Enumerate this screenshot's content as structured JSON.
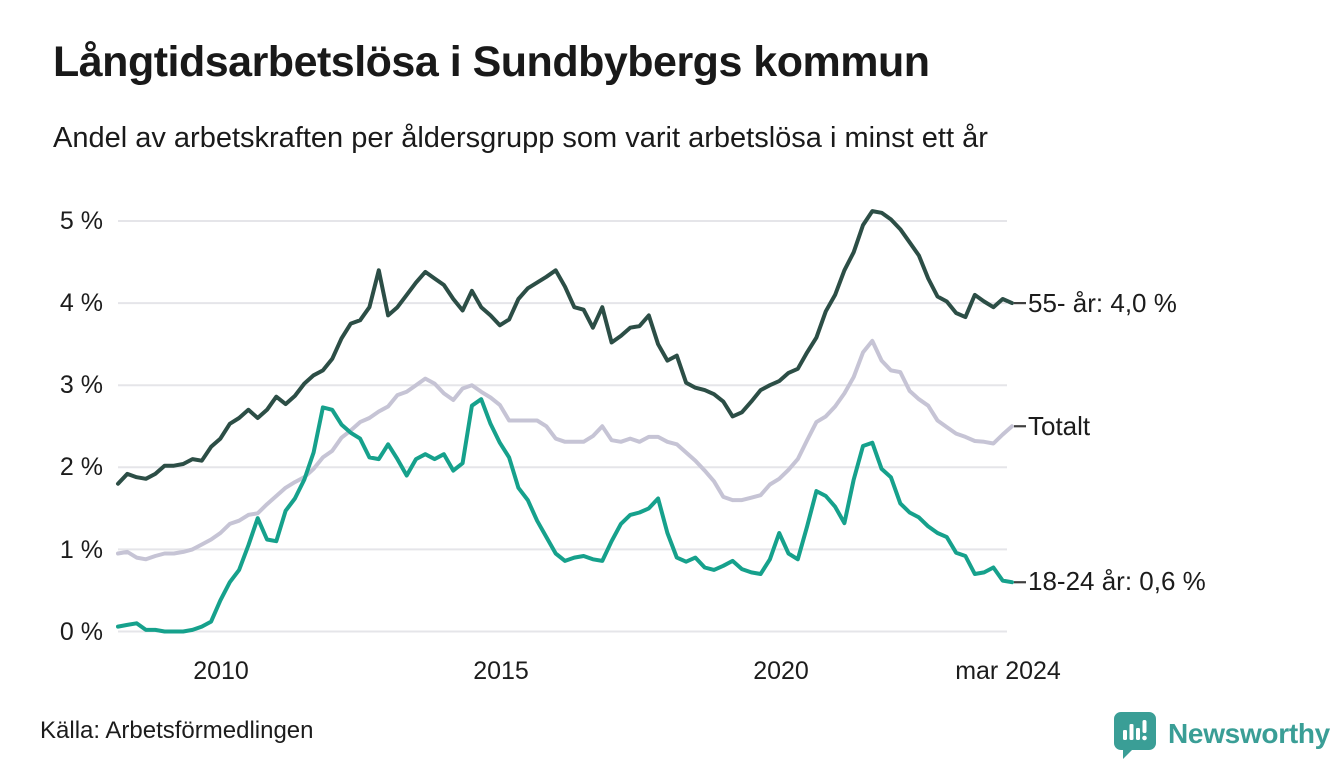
{
  "header": {
    "title": "Långtidsarbetslösa i Sundbybergs kommun",
    "subtitle": "Andel av arbetskraften per åldersgrupp som varit arbetslösa i minst ett år"
  },
  "footer": {
    "source": "Källa: Arbetsförmedlingen",
    "brand": "Newsworthy"
  },
  "colors": {
    "grid": "#e5e5e9",
    "label_dash": "#3f3f3f",
    "text": "#1a1a1a",
    "brand_teal": "#3a9e96"
  },
  "chart_data": {
    "type": "line",
    "title": "Långtidsarbetslösa i Sundbybergs kommun",
    "subtitle": "Andel av arbetskraften per åldersgrupp som varit arbetslösa i minst ett år",
    "xlabel": "",
    "ylabel": "",
    "grid": true,
    "legend_position": "right-inline",
    "ylim": [
      0,
      5.4
    ],
    "y_unit": "%",
    "y_tick_labels": [
      "5 %",
      "4 %",
      "3 %",
      "2 %",
      "1 %",
      "0 %"
    ],
    "y_tick_values": [
      5,
      4,
      3,
      2,
      1,
      0
    ],
    "x_unit": "month",
    "x_start": "2008-03",
    "x_step_months": 2,
    "x_end": "2024-03",
    "x_tick_labels": [
      "2010",
      "2015",
      "2020",
      "mar 2024"
    ],
    "x_tick_years": [
      2010,
      2015,
      2020,
      2024.17
    ],
    "series": [
      {
        "name": "55- år",
        "end_label": "55- år: 4,0 %",
        "last_value_label": "4,0 %",
        "color": "#2c4e46",
        "values": [
          1.8,
          1.92,
          1.88,
          1.86,
          1.92,
          2.02,
          2.02,
          2.04,
          2.1,
          2.08,
          2.25,
          2.35,
          2.53,
          2.6,
          2.7,
          2.6,
          2.7,
          2.86,
          2.77,
          2.87,
          3.02,
          3.12,
          3.18,
          3.32,
          3.57,
          3.75,
          3.79,
          3.95,
          4.4,
          3.85,
          3.95,
          4.1,
          4.25,
          4.38,
          4.3,
          4.22,
          4.05,
          3.91,
          4.15,
          3.95,
          3.85,
          3.73,
          3.8,
          4.05,
          4.18,
          4.25,
          4.32,
          4.4,
          4.2,
          3.95,
          3.92,
          3.7,
          3.95,
          3.52,
          3.6,
          3.7,
          3.72,
          3.85,
          3.5,
          3.3,
          3.36,
          3.03,
          2.97,
          2.94,
          2.89,
          2.8,
          2.62,
          2.67,
          2.8,
          2.94,
          3.0,
          3.05,
          3.15,
          3.2,
          3.4,
          3.58,
          3.9,
          4.1,
          4.4,
          4.62,
          4.95,
          5.12,
          5.1,
          5.02,
          4.9,
          4.74,
          4.58,
          4.3,
          4.08,
          4.02,
          3.88,
          3.83,
          4.1,
          4.02,
          3.95,
          4.05,
          4.0
        ]
      },
      {
        "name": "Totalt",
        "end_label": "Totalt",
        "last_value_label": "2,5 %",
        "color": "#c6c4d5",
        "values": [
          0.95,
          0.97,
          0.9,
          0.88,
          0.92,
          0.95,
          0.95,
          0.97,
          1.0,
          1.06,
          1.12,
          1.2,
          1.31,
          1.35,
          1.42,
          1.44,
          1.55,
          1.65,
          1.75,
          1.82,
          1.88,
          1.98,
          2.12,
          2.2,
          2.36,
          2.45,
          2.55,
          2.6,
          2.68,
          2.74,
          2.88,
          2.92,
          3.0,
          3.08,
          3.02,
          2.9,
          2.82,
          2.96,
          3.0,
          2.92,
          2.85,
          2.76,
          2.57,
          2.57,
          2.57,
          2.57,
          2.5,
          2.35,
          2.31,
          2.31,
          2.31,
          2.38,
          2.5,
          2.33,
          2.31,
          2.35,
          2.31,
          2.37,
          2.37,
          2.31,
          2.28,
          2.18,
          2.08,
          1.96,
          1.83,
          1.64,
          1.6,
          1.6,
          1.63,
          1.66,
          1.79,
          1.86,
          1.97,
          2.1,
          2.33,
          2.55,
          2.62,
          2.74,
          2.9,
          3.1,
          3.4,
          3.54,
          3.3,
          3.18,
          3.16,
          2.93,
          2.83,
          2.75,
          2.57,
          2.49,
          2.41,
          2.37,
          2.32,
          2.31,
          2.29,
          2.4,
          2.5
        ]
      },
      {
        "name": "18-24 år",
        "end_label": "18-24 år: 0,6 %",
        "last_value_label": "0,6 %",
        "color": "#16a18c",
        "values": [
          0.06,
          0.08,
          0.1,
          0.02,
          0.02,
          0.0,
          0.0,
          0.0,
          0.02,
          0.06,
          0.12,
          0.38,
          0.6,
          0.75,
          1.05,
          1.38,
          1.12,
          1.1,
          1.47,
          1.62,
          1.85,
          2.18,
          2.73,
          2.7,
          2.52,
          2.42,
          2.35,
          2.12,
          2.1,
          2.28,
          2.1,
          1.9,
          2.1,
          2.16,
          2.1,
          2.16,
          1.96,
          2.05,
          2.75,
          2.83,
          2.53,
          2.3,
          2.12,
          1.75,
          1.6,
          1.35,
          1.15,
          0.95,
          0.86,
          0.9,
          0.92,
          0.88,
          0.86,
          1.1,
          1.31,
          1.42,
          1.45,
          1.5,
          1.62,
          1.2,
          0.9,
          0.85,
          0.9,
          0.78,
          0.75,
          0.8,
          0.86,
          0.76,
          0.72,
          0.7,
          0.88,
          1.2,
          0.95,
          0.88,
          1.28,
          1.71,
          1.65,
          1.52,
          1.32,
          1.85,
          2.26,
          2.3,
          1.98,
          1.88,
          1.56,
          1.45,
          1.39,
          1.28,
          1.2,
          1.15,
          0.96,
          0.92,
          0.7,
          0.72,
          0.78,
          0.62,
          0.6
        ]
      }
    ]
  }
}
